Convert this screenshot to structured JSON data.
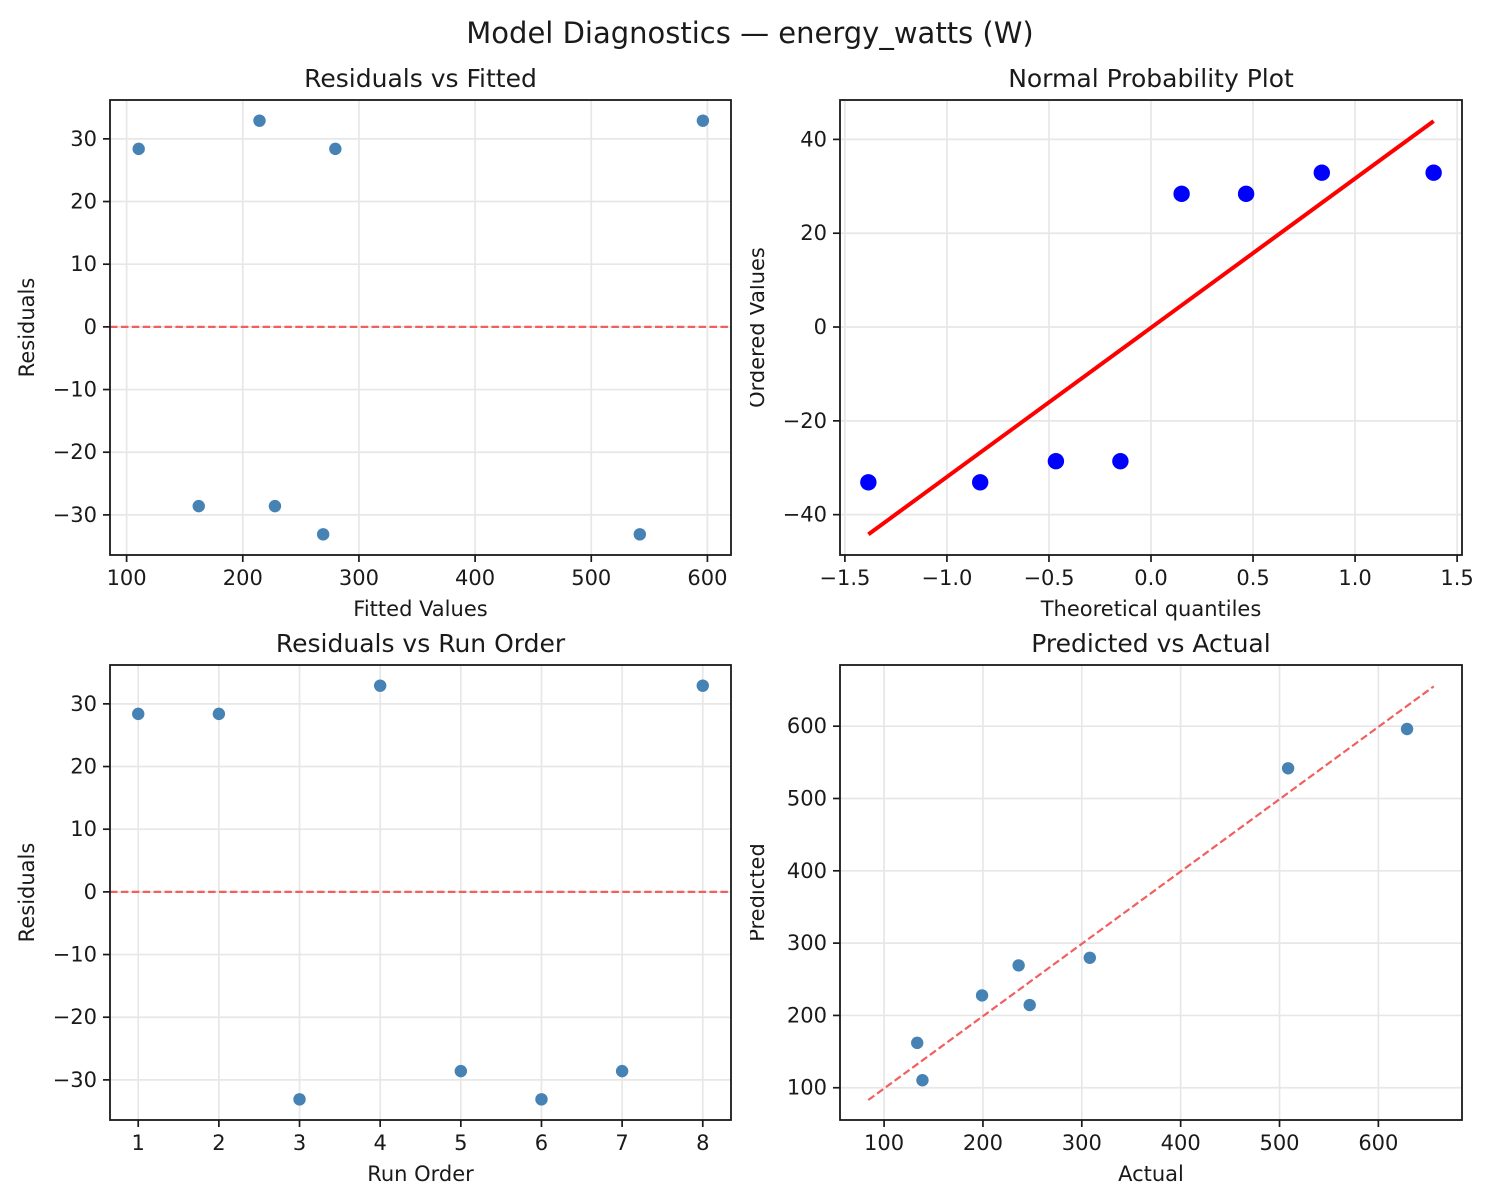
{
  "figure_title": "Model Diagnostics — energy_watts (W)",
  "colors": {
    "background": "#ffffff",
    "scatter_point": "#4682b4",
    "prob_point": "#0000ff",
    "prob_line": "#ff0000",
    "ref_dashed_line": "#f25f5f",
    "grid": "#e7e7e7",
    "frame": "#1a1a1a",
    "text": "#1a1a1a"
  },
  "chart_data": [
    {
      "id": "residuals_vs_fitted",
      "type": "scatter",
      "title": "Residuals vs Fitted",
      "xlabel": "Fitted Values",
      "ylabel": "Residuals",
      "grid": true,
      "legend": "none",
      "xlim": [
        85.7,
        620.3
      ],
      "ylim": [
        -36.4,
        36.2
      ],
      "xticks": {
        "values": [
          100,
          200,
          300,
          400,
          500,
          600
        ],
        "labels": [
          "100",
          "200",
          "300",
          "400",
          "500",
          "600"
        ]
      },
      "yticks": {
        "values": [
          -30,
          -20,
          -10,
          0,
          10,
          20,
          30
        ],
        "labels": [
          "−30",
          "−20",
          "−10",
          "0",
          "10",
          "20",
          "30"
        ]
      },
      "points": [
        [
          110.4,
          28.4
        ],
        [
          162.1,
          -28.6
        ],
        [
          214.4,
          32.9
        ],
        [
          227.7,
          -28.6
        ],
        [
          269.2,
          -33.1
        ],
        [
          279.7,
          28.4
        ],
        [
          541.8,
          -33.1
        ],
        [
          596.1,
          32.9
        ]
      ],
      "marker": {
        "shape": "circle",
        "radius": 6.2,
        "color": "#4682b4"
      },
      "lines": [
        {
          "name": "zero-line",
          "hline": 0,
          "color": "#f25f5f",
          "width": 2.2,
          "dash": "7.5 3.4"
        }
      ]
    },
    {
      "id": "normal_probability",
      "type": "scatter",
      "title": "Normal Probability Plot",
      "xlabel": "Theoretical quantiles",
      "ylabel": "Ordered Values",
      "grid": true,
      "legend": "none",
      "xlim": [
        -1.524,
        1.524
      ],
      "ylim": [
        -48.6,
        48.4
      ],
      "xticks": {
        "values": [
          -1.5,
          -1.0,
          -0.5,
          0.0,
          0.5,
          1.0,
          1.5
        ],
        "labels": [
          "−1.5",
          "−1.0",
          "−0.5",
          "0.0",
          "0.5",
          "1.0",
          "1.5"
        ]
      },
      "yticks": {
        "values": [
          -40,
          -20,
          0,
          20,
          40
        ],
        "labels": [
          "−40",
          "−20",
          "0",
          "20",
          "40"
        ]
      },
      "points": [
        [
          -1.385,
          -33.1
        ],
        [
          -0.837,
          -33.1
        ],
        [
          -0.466,
          -28.6
        ],
        [
          -0.15,
          -28.6
        ],
        [
          0.15,
          28.4
        ],
        [
          0.466,
          28.4
        ],
        [
          0.837,
          32.9
        ],
        [
          1.385,
          32.9
        ]
      ],
      "marker": {
        "shape": "circle",
        "radius": 8.2,
        "color": "#0000ff"
      },
      "fit_line": {
        "slope": 31.8,
        "intercept": -0.15
      },
      "lines": [
        {
          "name": "probability-fit-line",
          "x1": -1.385,
          "y1": -44.2,
          "x2": 1.385,
          "y2": 43.9,
          "color": "#ff0000",
          "width": 4,
          "dash": null
        }
      ]
    },
    {
      "id": "residuals_vs_run_order",
      "type": "scatter",
      "title": "Residuals vs Run Order",
      "xlabel": "Run Order",
      "ylabel": "Residuals",
      "grid": true,
      "legend": "none",
      "xlim": [
        0.65,
        8.35
      ],
      "ylim": [
        -36.4,
        36.2
      ],
      "xticks": {
        "values": [
          1,
          2,
          3,
          4,
          5,
          6,
          7,
          8
        ],
        "labels": [
          "1",
          "2",
          "3",
          "4",
          "5",
          "6",
          "7",
          "8"
        ]
      },
      "yticks": {
        "values": [
          -30,
          -20,
          -10,
          0,
          10,
          20,
          30
        ],
        "labels": [
          "−30",
          "−20",
          "−10",
          "0",
          "10",
          "20",
          "30"
        ]
      },
      "points": [
        [
          1,
          28.4
        ],
        [
          2,
          28.4
        ],
        [
          3,
          -33.1
        ],
        [
          4,
          32.9
        ],
        [
          5,
          -28.6
        ],
        [
          6,
          -33.1
        ],
        [
          7,
          -28.6
        ],
        [
          8,
          32.9
        ]
      ],
      "marker": {
        "shape": "circle",
        "radius": 6.2,
        "color": "#4682b4"
      },
      "lines": [
        {
          "name": "zero-line",
          "hline": 0,
          "color": "#f25f5f",
          "width": 2.2,
          "dash": "7.5 3.4"
        }
      ]
    },
    {
      "id": "predicted_vs_actual",
      "type": "scatter",
      "title": "Predicted vs Actual",
      "xlabel": "Actual",
      "ylabel": "Predicted",
      "grid": true,
      "legend": "none",
      "xlim": [
        55.4,
        684.6
      ],
      "ylim": [
        55.4,
        684.6
      ],
      "xticks": {
        "values": [
          100,
          200,
          300,
          400,
          500,
          600
        ],
        "labels": [
          "100",
          "200",
          "300",
          "400",
          "500",
          "600"
        ]
      },
      "yticks": {
        "values": [
          100,
          200,
          300,
          400,
          500,
          600
        ],
        "labels": [
          "100",
          "200",
          "300",
          "400",
          "500",
          "600"
        ]
      },
      "points": [
        [
          133.5,
          162.1
        ],
        [
          138.8,
          110.4
        ],
        [
          199.1,
          227.7
        ],
        [
          236.1,
          269.2
        ],
        [
          247.3,
          214.4
        ],
        [
          308.1,
          279.7
        ],
        [
          508.7,
          541.8
        ],
        [
          629.0,
          596.1
        ]
      ],
      "marker": {
        "shape": "circle",
        "radius": 6.2,
        "color": "#4682b4"
      },
      "lines": [
        {
          "name": "identity-line",
          "x1": 84,
          "y1": 83,
          "x2": 656,
          "y2": 655,
          "color": "#f25f5f",
          "width": 2.2,
          "dash": "7.5 3.4"
        }
      ]
    }
  ]
}
